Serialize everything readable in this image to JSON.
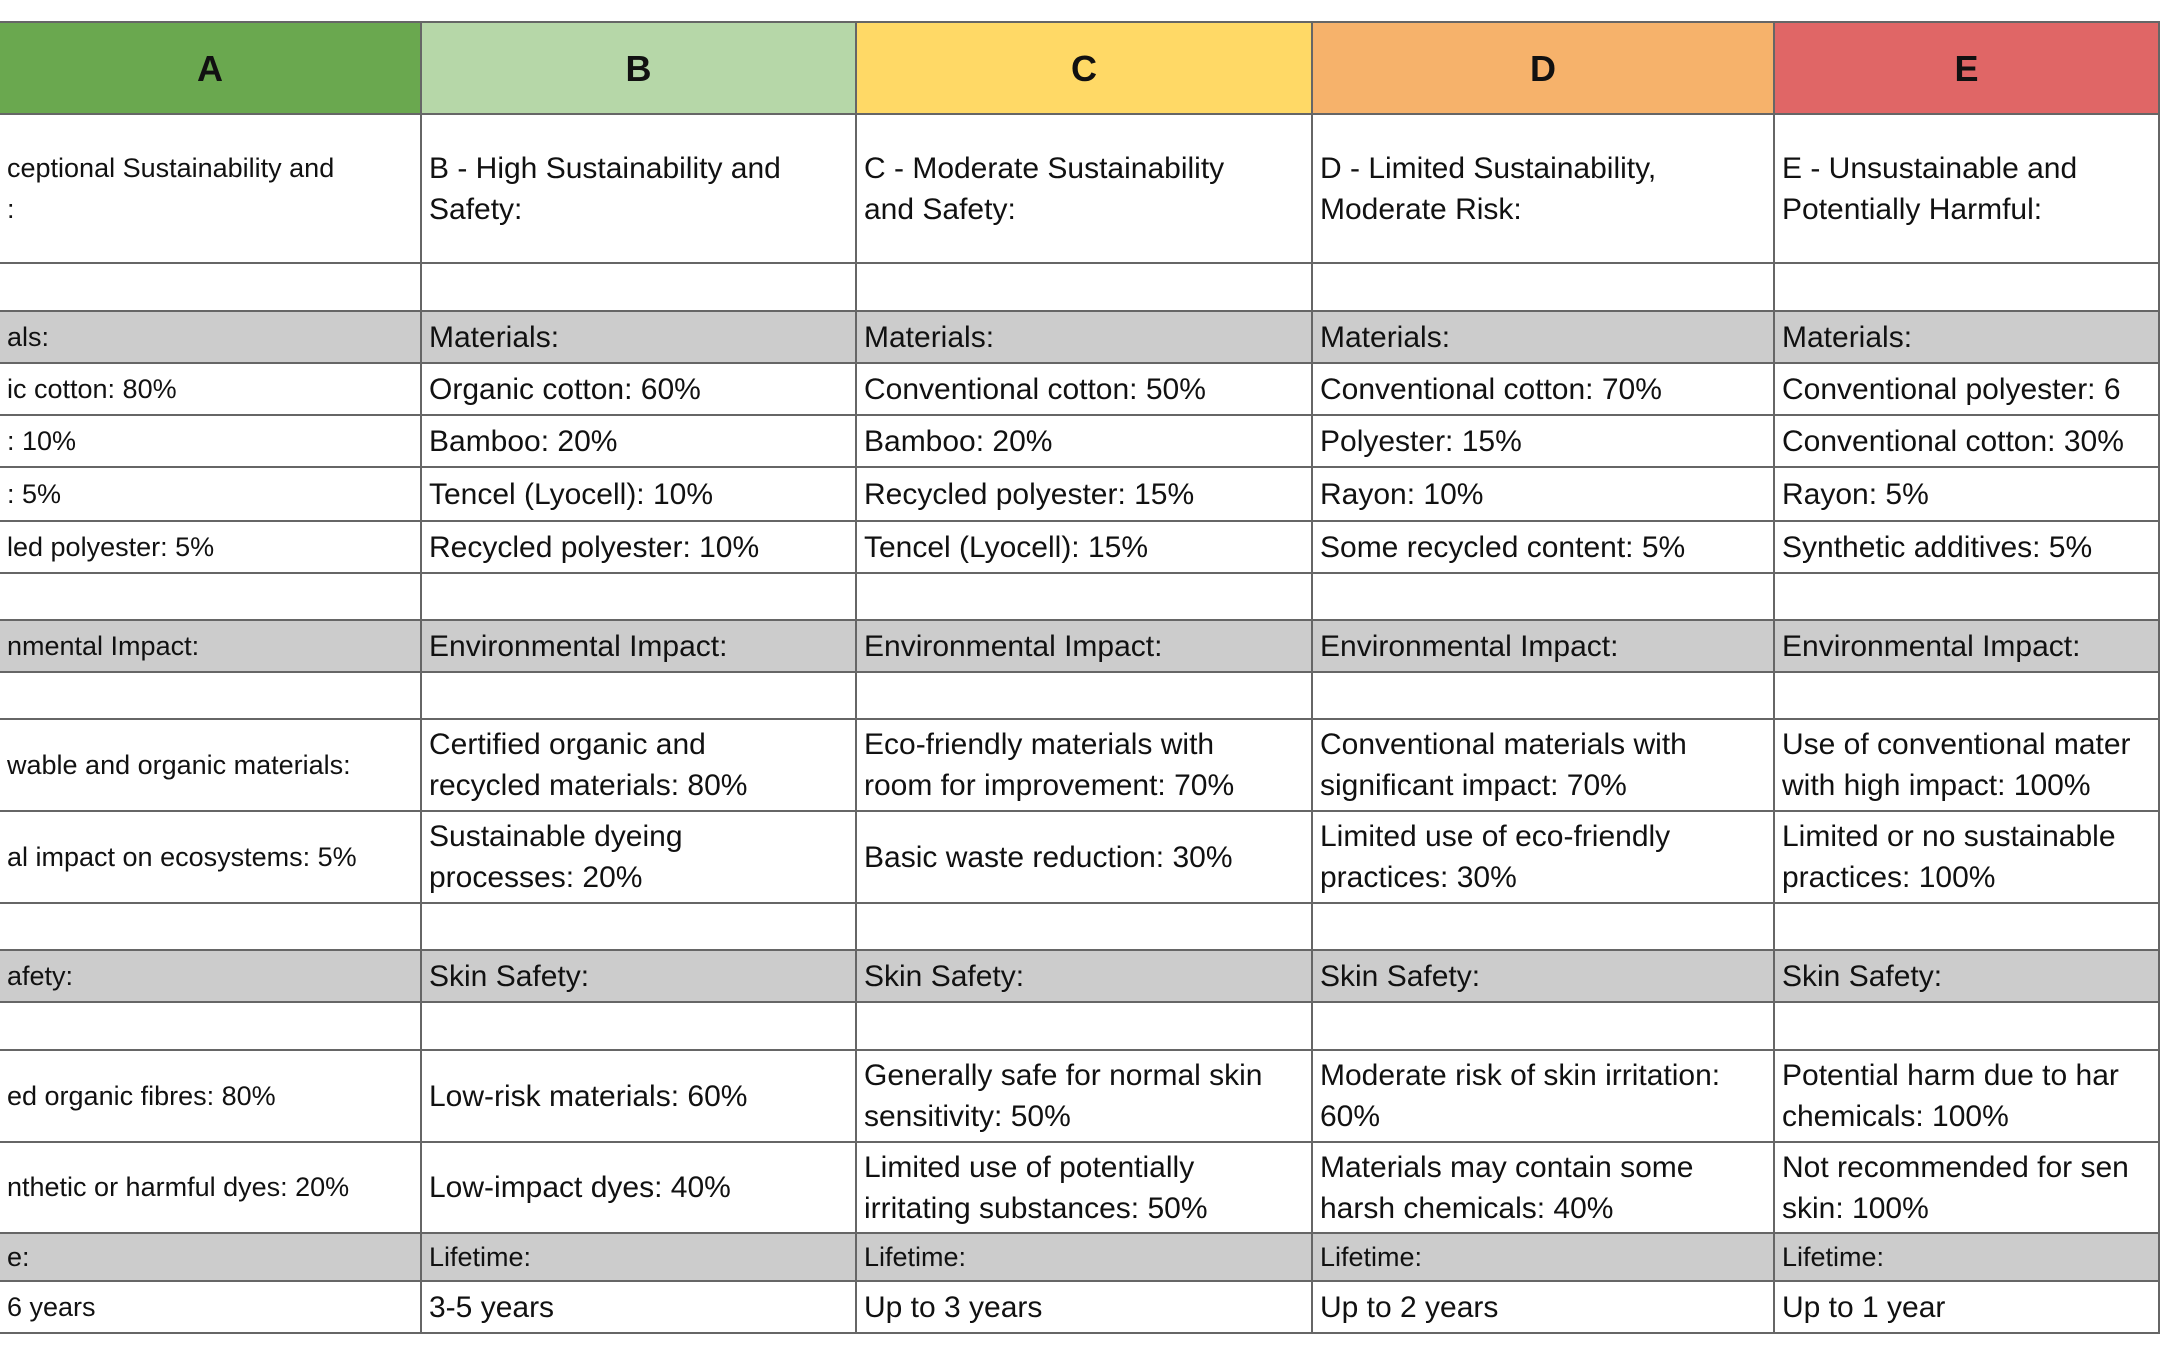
{
  "header": {
    "columns": [
      "A",
      "B",
      "C",
      "D",
      "E"
    ]
  },
  "table": {
    "rows": [
      {
        "shaded": false,
        "cells": [
          "ceptional Sustainability and\n:",
          "B - High Sustainability and\nSafety:",
          "C - Moderate Sustainability\nand Safety:",
          "D - Limited Sustainability,\nModerate Risk:",
          "E - Unsustainable and\nPotentially Harmful:"
        ]
      },
      {
        "shaded": true,
        "cells": [
          "als:",
          "Materials:",
          "Materials:",
          "Materials:",
          "Materials:"
        ]
      },
      {
        "shaded": false,
        "cells": [
          "ic cotton: 80%",
          "Organic cotton: 60%",
          "Conventional cotton: 50%",
          "Conventional cotton: 70%",
          "Conventional polyester: 6"
        ]
      },
      {
        "shaded": false,
        "cells": [
          ": 10%",
          "Bamboo: 20%",
          "Bamboo: 20%",
          "Polyester: 15%",
          "Conventional cotton: 30%"
        ]
      },
      {
        "shaded": false,
        "cells": [
          ": 5%",
          "Tencel (Lyocell): 10%",
          "Recycled polyester: 15%",
          "Rayon: 10%",
          "Rayon: 5%"
        ]
      },
      {
        "shaded": false,
        "cells": [
          "led polyester: 5%",
          "Recycled polyester: 10%",
          "Tencel (Lyocell): 15%",
          "Some recycled content: 5%",
          "Synthetic additives: 5%"
        ]
      },
      {
        "shaded": true,
        "cells": [
          "nmental Impact:",
          "Environmental Impact:",
          "Environmental Impact:",
          "Environmental Impact:",
          "Environmental Impact:"
        ]
      },
      {
        "shaded": false,
        "cells": [
          "wable and organic materials:",
          "Certified organic and\nrecycled materials: 80%",
          "Eco-friendly materials with\nroom for improvement: 70%",
          "Conventional materials with\nsignificant impact: 70%",
          "Use of conventional mater\nwith high impact: 100%"
        ]
      },
      {
        "shaded": false,
        "cells": [
          "al impact on ecosystems: 5%",
          "Sustainable dyeing\nprocesses: 20%",
          "Basic waste reduction: 30%",
          "Limited use of eco-friendly\npractices: 30%",
          "Limited or no sustainable\npractices: 100%"
        ]
      },
      {
        "shaded": true,
        "cells": [
          "afety:",
          "Skin Safety:",
          "Skin Safety:",
          "Skin Safety:",
          "Skin Safety:"
        ]
      },
      {
        "shaded": false,
        "cells": [
          "ed organic fibres: 80%",
          "Low-risk materials: 60%",
          "Generally safe for normal skin\nsensitivity: 50%",
          "Moderate risk of skin irritation:\n60%",
          "Potential harm due to har\nchemicals: 100%"
        ]
      },
      {
        "shaded": false,
        "cells": [
          "nthetic or harmful dyes: 20%",
          "Low-impact dyes: 40%",
          "Limited use of potentially\nirritating substances: 50%",
          "Materials may contain some\nharsh chemicals: 40%",
          "Not recommended for sen\nskin: 100%"
        ]
      },
      {
        "shaded": true,
        "cells": [
          "e:",
          "Lifetime:",
          "Lifetime:",
          "Lifetime:",
          "Lifetime:"
        ]
      },
      {
        "shaded": false,
        "cells": [
          "6 years",
          "3-5 years",
          "Up to 3 years",
          "Up to 2 years",
          "Up to 1 year"
        ]
      }
    ]
  }
}
